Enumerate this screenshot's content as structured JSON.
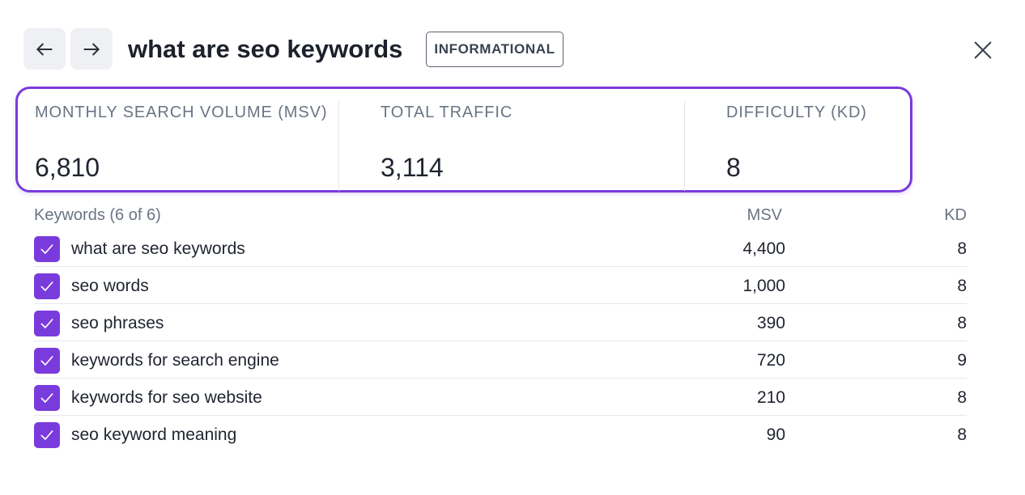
{
  "header": {
    "title": "what are seo keywords",
    "intent_badge": "INFORMATIONAL",
    "back_icon": "arrow-left-icon",
    "forward_icon": "arrow-right-icon",
    "close_icon": "close-icon"
  },
  "stats": [
    {
      "label": "MONTHLY SEARCH VOLUME (MSV)",
      "value": "6,810"
    },
    {
      "label": "TOTAL TRAFFIC",
      "value": "3,114"
    },
    {
      "label": "DIFFICULTY (KD)",
      "value": "8"
    }
  ],
  "table": {
    "headers": {
      "keywords": "Keywords (6 of 6)",
      "msv": "MSV",
      "kd": "KD"
    },
    "rows": [
      {
        "keyword": "what are seo keywords",
        "msv": "4,400",
        "kd": "8",
        "checked": true
      },
      {
        "keyword": "seo words",
        "msv": "1,000",
        "kd": "8",
        "checked": true
      },
      {
        "keyword": "seo phrases",
        "msv": "390",
        "kd": "8",
        "checked": true
      },
      {
        "keyword": "keywords for search engine",
        "msv": "720",
        "kd": "9",
        "checked": true
      },
      {
        "keyword": "keywords for seo website",
        "msv": "210",
        "kd": "8",
        "checked": true
      },
      {
        "keyword": "seo keyword meaning",
        "msv": "90",
        "kd": "8",
        "checked": true
      }
    ]
  },
  "colors": {
    "accent": "#7a3bdc",
    "nav_button_bg": "#eef0f3",
    "muted_text": "#6b7484"
  }
}
